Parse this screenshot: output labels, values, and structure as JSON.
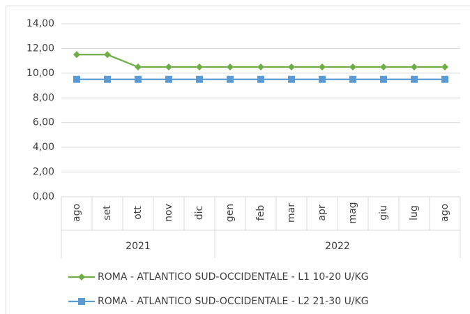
{
  "chart_data": {
    "type": "line",
    "categories": [
      "ago",
      "set",
      "ott",
      "nov",
      "dic",
      "gen",
      "feb",
      "mar",
      "apr",
      "mag",
      "giu",
      "lug",
      "ago"
    ],
    "groups": [
      {
        "label": "2021",
        "size": 5
      },
      {
        "label": "2022",
        "size": 8
      }
    ],
    "series": [
      {
        "name": "ROMA - ATLANTICO SUD-OCCIDENTALE - L1 10-20 U/KG",
        "color": "#70ad47",
        "marker": "diamond",
        "values": [
          11.5,
          11.5,
          10.5,
          10.5,
          10.5,
          10.5,
          10.5,
          10.5,
          10.5,
          10.5,
          10.5,
          10.5,
          10.5
        ]
      },
      {
        "name": "ROMA - ATLANTICO SUD-OCCIDENTALE - L2 21-30 U/KG",
        "color": "#5b9bd5",
        "marker": "square",
        "values": [
          9.5,
          9.5,
          9.5,
          9.5,
          9.5,
          9.5,
          9.5,
          9.5,
          9.5,
          9.5,
          9.5,
          9.5,
          9.5
        ]
      }
    ],
    "ylim": [
      0,
      14
    ],
    "yticks": [
      {
        "value": 0,
        "label": "0,00"
      },
      {
        "value": 2,
        "label": "2,00"
      },
      {
        "value": 4,
        "label": "4,00"
      },
      {
        "value": 6,
        "label": "6,00"
      },
      {
        "value": 8,
        "label": "8,00"
      },
      {
        "value": 10,
        "label": "10,00"
      },
      {
        "value": 12,
        "label": "12,00"
      },
      {
        "value": 14,
        "label": "14,00"
      }
    ],
    "grid": true
  }
}
